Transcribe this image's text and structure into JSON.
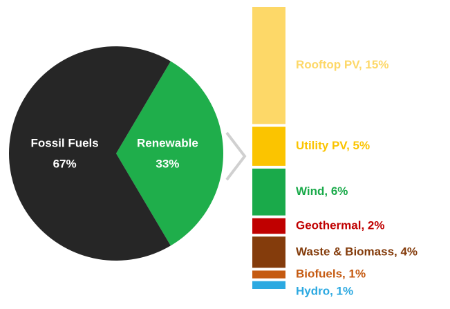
{
  "chart_data": [
    {
      "type": "pie",
      "categories": [
        "Fossil Fuels",
        "Renewable"
      ],
      "values": [
        67,
        33
      ],
      "value_labels": [
        "67%",
        "33%"
      ],
      "colors": [
        "#262626",
        "#1fae4b"
      ]
    },
    {
      "type": "stacked-bar",
      "labels": [
        "Rooftop PV, 15%",
        "Utility PV, 5%",
        "Wind, 6%",
        "Geothermal, 2%",
        "Waste & Biomass, 4%",
        "Biofuels, 1%",
        "Hydro, 1%"
      ],
      "values": [
        15,
        5,
        6,
        2,
        4,
        1,
        1
      ],
      "colors": [
        "#fdd868",
        "#fbc400",
        "#1aaa4a",
        "#c00000",
        "#843c0c",
        "#c55a11",
        "#2ca9e1"
      ]
    }
  ]
}
